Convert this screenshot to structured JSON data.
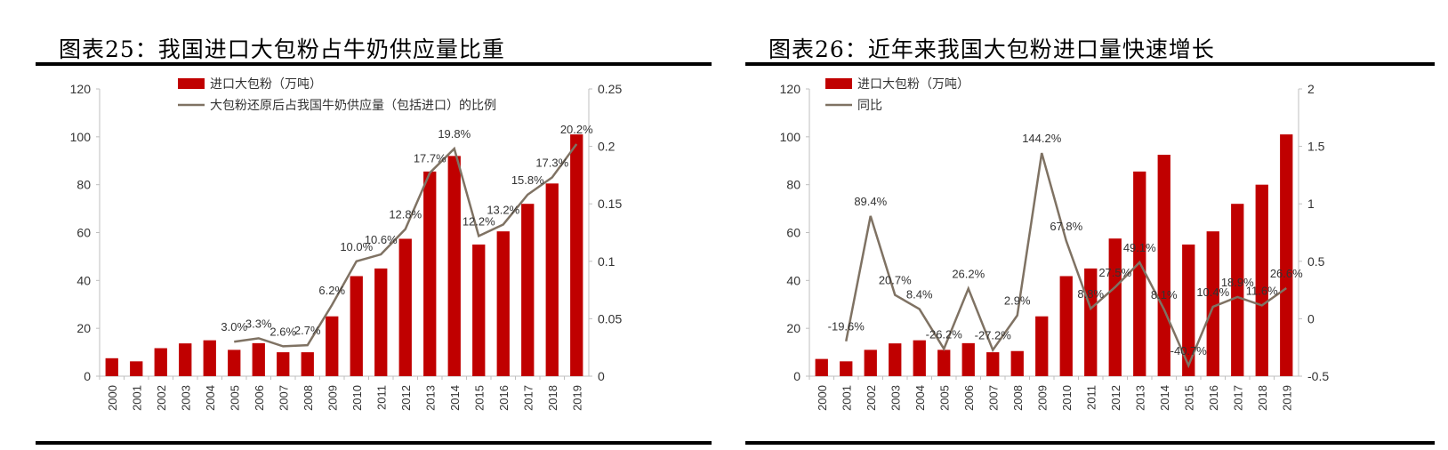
{
  "figures": [
    {
      "title": "图表25：我国进口大包粉占牛奶供应量比重"
    },
    {
      "title": "图表26：近年来我国大包粉进口量快速增长"
    }
  ],
  "colors": {
    "bar": "#c00000",
    "line": "#7f7263",
    "axis": "#bfbfbf",
    "text": "#333333"
  },
  "chart_data": [
    {
      "type": "bar",
      "title": "图表25：我国进口大包粉占牛奶供应量比重",
      "categories": [
        "2000",
        "2001",
        "2002",
        "2003",
        "2004",
        "2005",
        "2006",
        "2007",
        "2008",
        "2009",
        "2010",
        "2011",
        "2012",
        "2013",
        "2014",
        "2015",
        "2016",
        "2017",
        "2018",
        "2019"
      ],
      "series": [
        {
          "name": "进口大包粉（万吨）",
          "type": "bar",
          "axis": "left",
          "values": [
            7.5,
            6.2,
            11.7,
            13.7,
            15.0,
            11.0,
            13.8,
            10.0,
            10.0,
            25.0,
            41.8,
            45.0,
            57.4,
            85.5,
            92.0,
            55.0,
            60.5,
            72.0,
            80.5,
            101.0
          ]
        },
        {
          "name": "大包粉还原后占我国牛奶供应量（包括进口）的比例",
          "type": "line",
          "axis": "right",
          "values": [
            null,
            null,
            null,
            null,
            null,
            0.03,
            0.033,
            0.026,
            0.027,
            0.062,
            0.1,
            0.106,
            0.128,
            0.177,
            0.198,
            0.122,
            0.132,
            0.158,
            0.173,
            0.202
          ],
          "labels": [
            "",
            "",
            "",
            "",
            "",
            "3.0%",
            "3.3%",
            "2.6%",
            "2.7%",
            "6.2%",
            "10.0%",
            "10.6%",
            "12.8%",
            "17.7%",
            "19.8%",
            "12.2%",
            "13.2%",
            "15.8%",
            "17.3%",
            "20.2%"
          ]
        }
      ],
      "ylim": [
        0,
        120
      ],
      "yticks": [
        "0",
        "20",
        "40",
        "60",
        "80",
        "100",
        "120"
      ],
      "y2lim": [
        0,
        0.25
      ],
      "y2ticks": [
        "0",
        "0.05",
        "0.1",
        "0.15",
        "0.2",
        "0.25"
      ],
      "legend": "top-left",
      "grid": false
    },
    {
      "type": "bar",
      "title": "图表26：近年来我国大包粉进口量快速增长",
      "categories": [
        "2000",
        "2001",
        "2002",
        "2003",
        "2004",
        "2005",
        "2006",
        "2007",
        "2008",
        "2009",
        "2010",
        "2011",
        "2012",
        "2013",
        "2014",
        "2015",
        "2016",
        "2017",
        "2018",
        "2019"
      ],
      "series": [
        {
          "name": "进口大包粉（万吨）",
          "type": "bar",
          "axis": "left",
          "values": [
            7.2,
            6.2,
            11.0,
            13.7,
            15.0,
            11.0,
            13.8,
            10.0,
            10.5,
            25.0,
            41.8,
            45.0,
            57.5,
            85.5,
            92.5,
            55.0,
            60.5,
            72.0,
            80.0,
            101.0
          ]
        },
        {
          "name": "同比",
          "type": "line",
          "axis": "right",
          "values": [
            null,
            -0.196,
            0.894,
            0.207,
            0.084,
            -0.262,
            0.262,
            -0.272,
            0.029,
            1.442,
            0.678,
            0.088,
            0.275,
            0.491,
            0.081,
            -0.407,
            0.104,
            0.189,
            0.116,
            0.266
          ],
          "labels": [
            "",
            "-19.6%",
            "89.4%",
            "20.7%",
            "8.4%",
            "-26.2%",
            "26.2%",
            "-27.2%",
            "2.9%",
            "144.2%",
            "67.8%",
            "8.8%",
            "27.5%",
            "49.1%",
            "8.1%",
            "-40.7%",
            "10.4%",
            "18.9%",
            "11.6%",
            "26.6%"
          ]
        }
      ],
      "ylim": [
        0,
        120
      ],
      "yticks": [
        "0",
        "20",
        "40",
        "60",
        "80",
        "100",
        "120"
      ],
      "y2lim": [
        -0.5,
        2
      ],
      "y2ticks": [
        "-0.5",
        "0",
        "0.5",
        "1",
        "1.5",
        "2"
      ],
      "legend": "top-left",
      "grid": false
    }
  ]
}
